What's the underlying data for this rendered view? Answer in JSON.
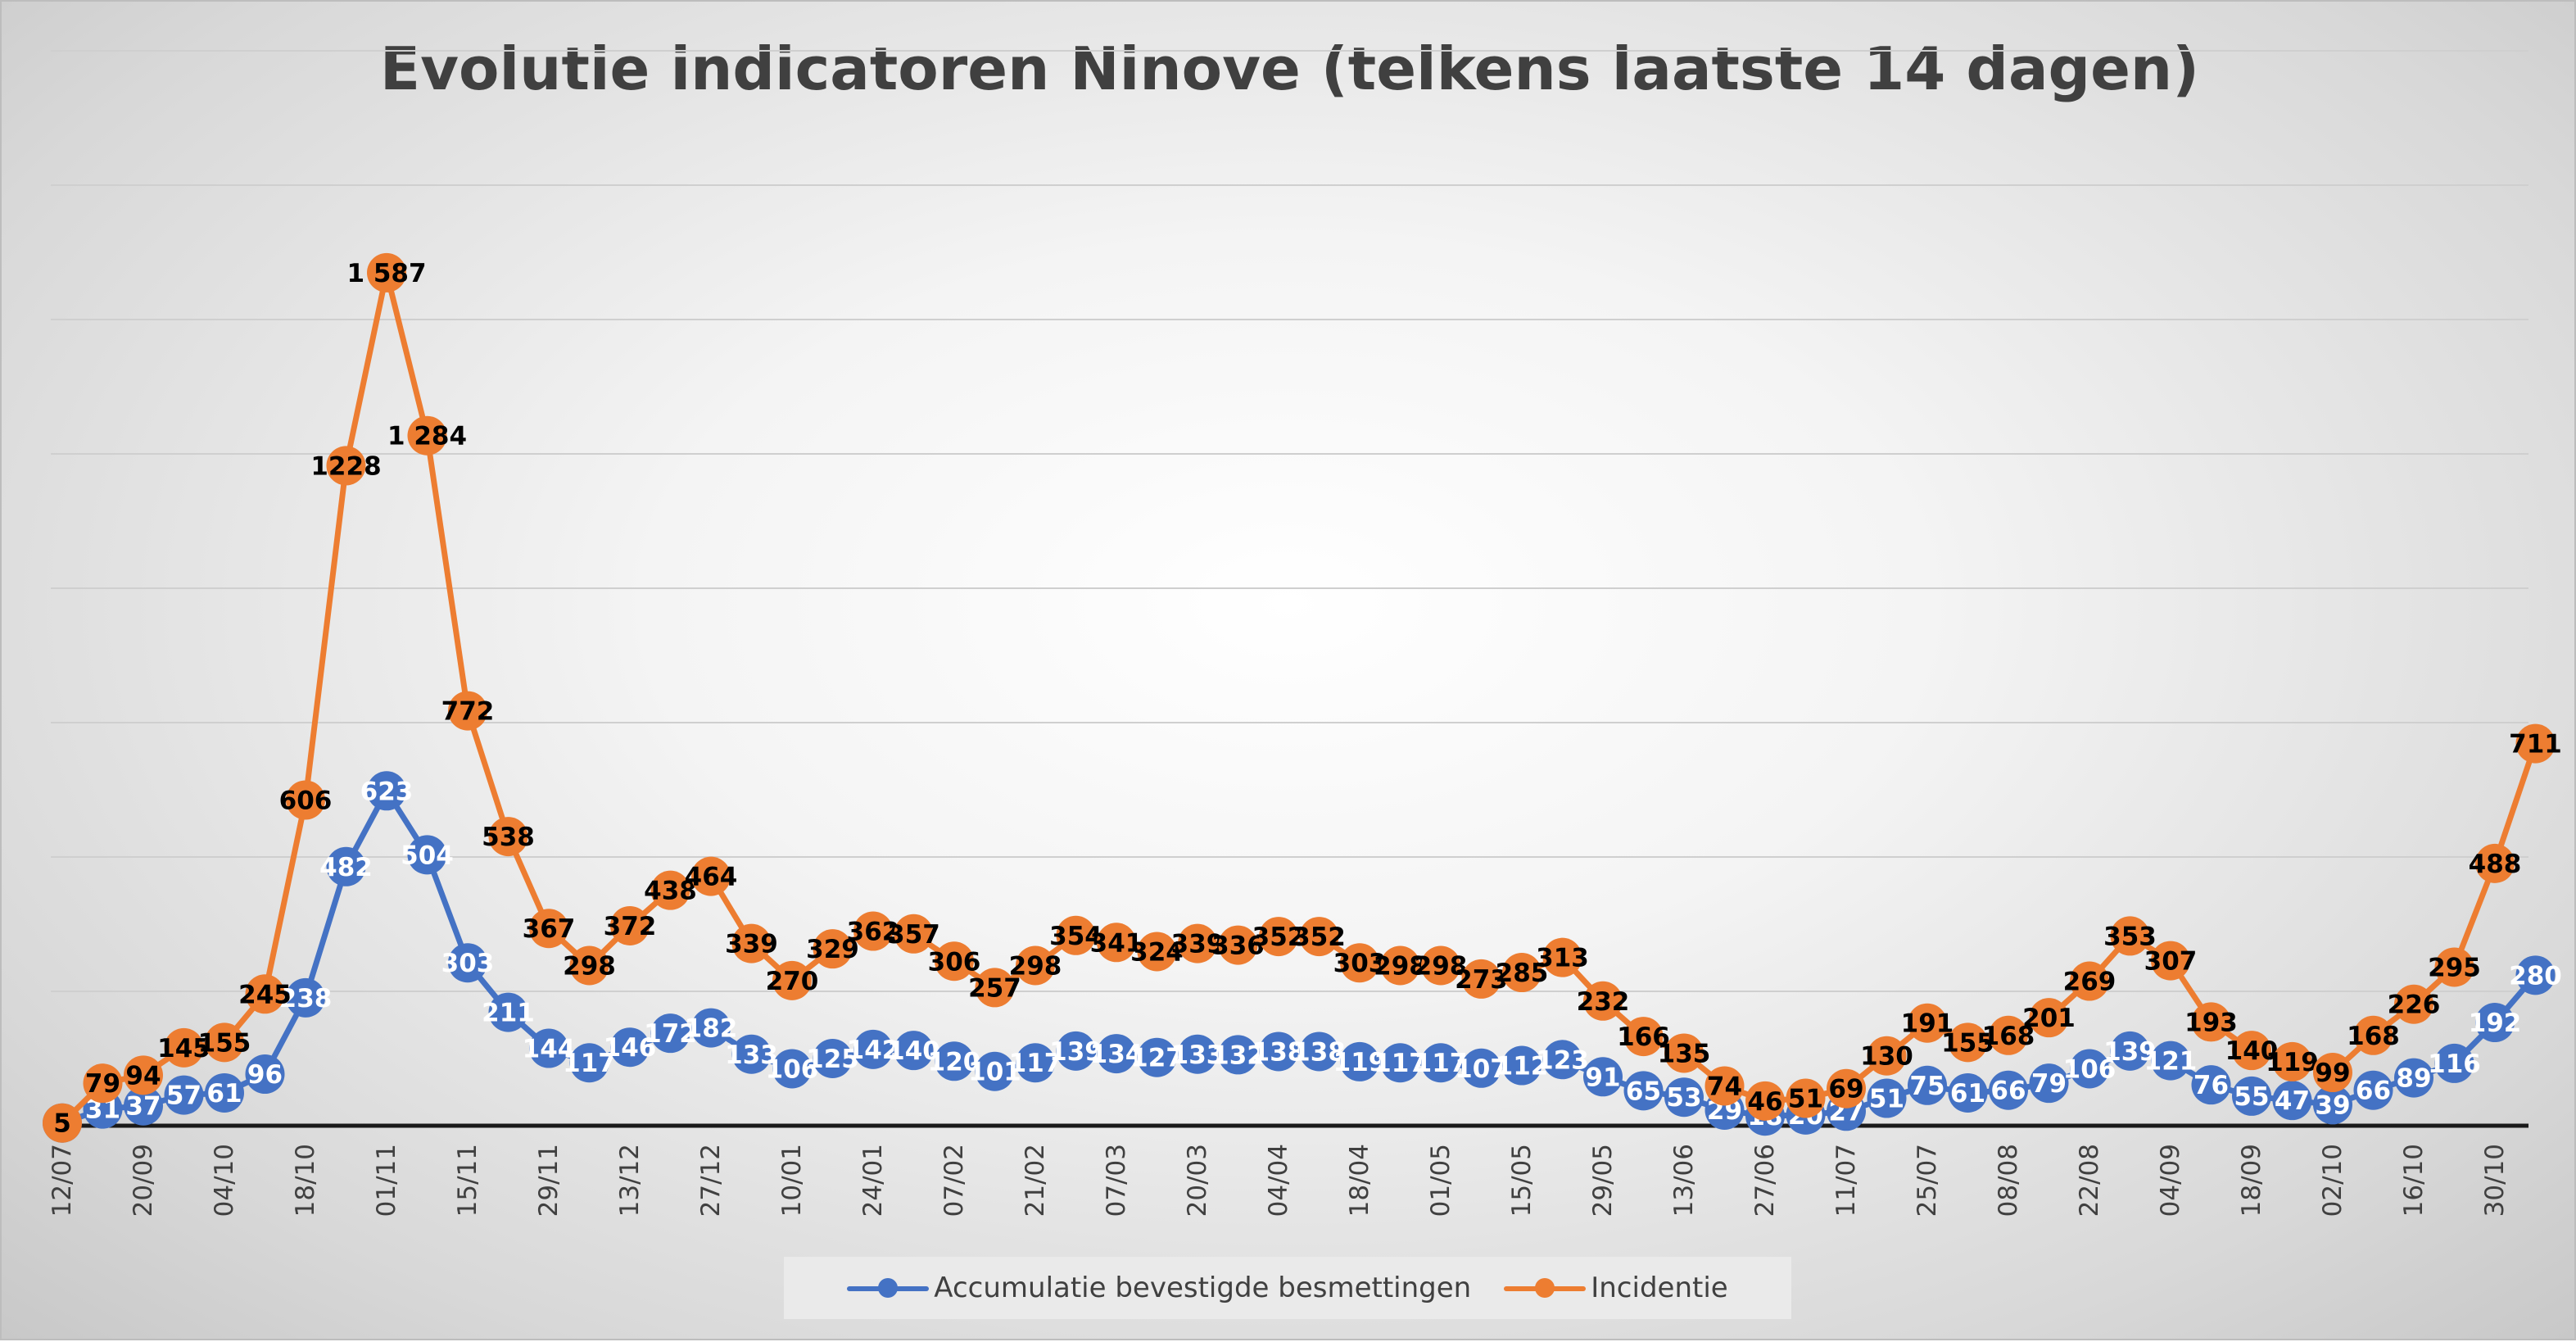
{
  "chart_data": {
    "type": "line",
    "title": "Evolutie indicatoren Ninove (telkens laatste 14 dagen)",
    "x": [
      "12/07",
      "",
      "20/09",
      "",
      "04/10",
      "",
      "18/10",
      "",
      "01/11",
      "",
      "15/11",
      "",
      "29/11",
      "",
      "13/12",
      "",
      "27/12",
      "",
      "10/01",
      "",
      "24/01",
      "",
      "07/02",
      "",
      "21/02",
      "",
      "07/03",
      "",
      "20/03",
      "",
      "04/04",
      "",
      "18/04",
      "",
      "01/05",
      "",
      "15/05",
      "",
      "29/05",
      "",
      "13/06",
      "",
      "27/06",
      "",
      "11/07",
      "",
      "25/07",
      "",
      "08/08",
      "",
      "22/08",
      "",
      "04/09",
      "",
      "18/09",
      "",
      "02/10",
      "",
      "16/10",
      "",
      "30/10",
      ""
    ],
    "series": [
      {
        "name": "Accumulatie bevestigde besmettingen",
        "color": "#4472c4",
        "values": [
          5,
          31,
          37,
          57,
          61,
          96,
          238,
          482,
          623,
          504,
          303,
          211,
          144,
          117,
          146,
          172,
          182,
          133,
          106,
          125,
          142,
          140,
          120,
          101,
          117,
          139,
          134,
          127,
          133,
          132,
          138,
          138,
          119,
          117,
          117,
          107,
          112,
          123,
          91,
          65,
          53,
          29,
          18,
          20,
          27,
          51,
          75,
          61,
          66,
          79,
          106,
          139,
          121,
          76,
          55,
          47,
          39,
          66,
          89,
          116,
          192,
          280
        ],
        "labels": [
          "5",
          "31",
          "37",
          "57",
          "61",
          "96",
          "238",
          "482",
          "623",
          "504",
          "303",
          "211",
          "144",
          "117",
          "146",
          "172",
          "182",
          "133",
          "106",
          "125",
          "142",
          "140",
          "120",
          "101",
          "117",
          "139",
          "134",
          "127",
          "133",
          "132",
          "138",
          "138",
          "119",
          "117",
          "117",
          "107",
          "112",
          "123",
          "91",
          "65",
          "53",
          "29",
          "18",
          "20",
          "27",
          "51",
          "75",
          "61",
          "66",
          "79",
          "106",
          "139",
          "121",
          "76",
          "55",
          "47",
          "39",
          "66",
          "89",
          "116",
          "192",
          "280"
        ]
      },
      {
        "name": "Incidentie",
        "color": "#ed7d31",
        "values": [
          5,
          79,
          94,
          145,
          155,
          245,
          606,
          1228,
          1587,
          1284,
          772,
          538,
          367,
          298,
          372,
          438,
          464,
          339,
          270,
          329,
          362,
          357,
          306,
          257,
          298,
          354,
          341,
          324,
          339,
          336,
          352,
          352,
          303,
          298,
          298,
          273,
          285,
          313,
          232,
          166,
          135,
          74,
          46,
          51,
          69,
          130,
          191,
          155,
          168,
          201,
          269,
          353,
          307,
          193,
          140,
          119,
          99,
          168,
          226,
          295,
          488,
          711
        ],
        "labels": [
          "5",
          "79",
          "94",
          "145",
          "155",
          "245",
          "606",
          "1228",
          "1 587",
          "1 284",
          "772",
          "538",
          "367",
          "298",
          "372",
          "438",
          "464",
          "339",
          "270",
          "329",
          "362",
          "357",
          "306",
          "257",
          "298",
          "354",
          "341",
          "324",
          "339",
          "336",
          "352",
          "352",
          "303",
          "298",
          "298",
          "273",
          "285",
          "313",
          "232",
          "166",
          "135",
          "74",
          "46",
          "51",
          "69",
          "130",
          "191",
          "155",
          "168",
          "201",
          "269",
          "353",
          "307",
          "193",
          "140",
          "119",
          "99",
          "168",
          "226",
          "295",
          "488",
          "711"
        ]
      }
    ],
    "ylim": [
      0,
      2000
    ],
    "grid": true,
    "legend": "bottom"
  }
}
